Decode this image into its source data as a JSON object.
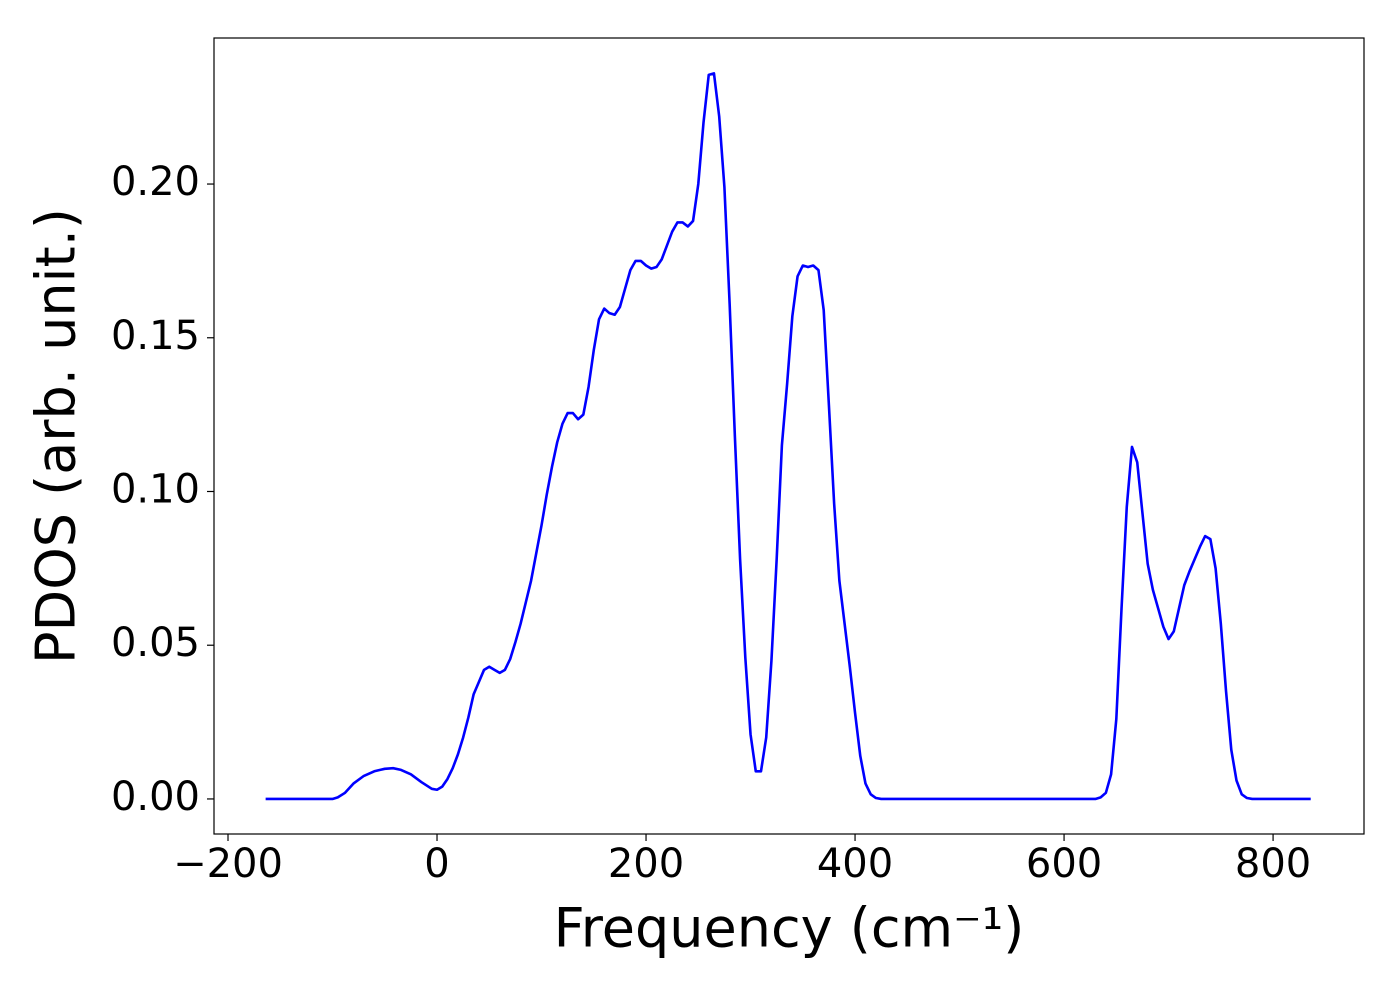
{
  "chart_data": {
    "type": "line",
    "xlabel": "Frequency (cm⁻¹)",
    "ylabel": "PDOS (arb. unit.)",
    "color": "#0000ff",
    "x": [
      -164,
      -100,
      -95,
      -88,
      -80,
      -70,
      -60,
      -50,
      -42,
      -35,
      -25,
      -15,
      -5,
      0,
      5,
      10,
      15,
      20,
      25,
      30,
      35,
      40,
      45,
      50,
      55,
      60,
      65,
      70,
      75,
      80,
      85,
      90,
      95,
      100,
      105,
      110,
      115,
      120,
      125,
      130,
      135,
      140,
      145,
      150,
      155,
      160,
      165,
      170,
      175,
      180,
      185,
      190,
      195,
      200,
      205,
      210,
      215,
      220,
      225,
      230,
      235,
      240,
      245,
      250,
      255,
      260,
      265,
      270,
      275,
      280,
      285,
      290,
      295,
      300,
      305,
      310,
      315,
      320,
      325,
      330,
      335,
      340,
      345,
      350,
      355,
      360,
      365,
      370,
      375,
      380,
      385,
      390,
      395,
      400,
      405,
      410,
      415,
      420,
      425,
      630,
      635,
      640,
      645,
      650,
      655,
      660,
      665,
      670,
      675,
      680,
      685,
      690,
      695,
      700,
      705,
      710,
      715,
      720,
      725,
      730,
      735,
      740,
      745,
      750,
      755,
      760,
      765,
      770,
      775,
      780,
      836
    ],
    "values": [
      0,
      0,
      0.0005,
      0.002,
      0.005,
      0.0075,
      0.009,
      0.0098,
      0.01,
      0.0095,
      0.008,
      0.0055,
      0.0033,
      0.003,
      0.004,
      0.0065,
      0.01,
      0.0145,
      0.02,
      0.0265,
      0.034,
      0.038,
      0.042,
      0.043,
      0.042,
      0.041,
      0.042,
      0.0455,
      0.051,
      0.057,
      0.064,
      0.071,
      0.08,
      0.089,
      0.099,
      0.108,
      0.116,
      0.122,
      0.1255,
      0.1255,
      0.1235,
      0.125,
      0.134,
      0.146,
      0.156,
      0.1595,
      0.158,
      0.1575,
      0.16,
      0.166,
      0.172,
      0.175,
      0.175,
      0.1735,
      0.1725,
      0.173,
      0.1755,
      0.18,
      0.1845,
      0.1875,
      0.1875,
      0.1862,
      0.188,
      0.2,
      0.22,
      0.2355,
      0.236,
      0.222,
      0.199,
      0.161,
      0.118,
      0.078,
      0.046,
      0.021,
      0.009,
      0.009,
      0.02,
      0.045,
      0.078,
      0.115,
      0.135,
      0.157,
      0.17,
      0.1735,
      0.173,
      0.1735,
      0.172,
      0.159,
      0.128,
      0.096,
      0.071,
      0.057,
      0.043,
      0.028,
      0.014,
      0.005,
      0.0015,
      0.0003,
      0,
      0,
      0.0005,
      0.002,
      0.008,
      0.026,
      0.062,
      0.095,
      0.1145,
      0.1095,
      0.093,
      0.0765,
      0.068,
      0.062,
      0.056,
      0.052,
      0.0545,
      0.062,
      0.0695,
      0.074,
      0.078,
      0.082,
      0.0855,
      0.0845,
      0.075,
      0.057,
      0.035,
      0.016,
      0.006,
      0.0015,
      0.0003,
      0,
      0
    ],
    "xlim": [
      -213.4,
      887
    ],
    "ylim": [
      -0.0114,
      0.2475
    ],
    "xticks": [
      {
        "value": -200,
        "label": "−200"
      },
      0,
      200,
      400,
      600,
      800
    ],
    "yticks": [
      {
        "value": 0,
        "label": "0.00"
      },
      {
        "value": 0.05,
        "label": "0.05"
      },
      {
        "value": 0.1,
        "label": "0.10"
      },
      {
        "value": 0.15,
        "label": "0.15"
      },
      {
        "value": 0.2,
        "label": "0.20"
      }
    ],
    "grid": false
  }
}
